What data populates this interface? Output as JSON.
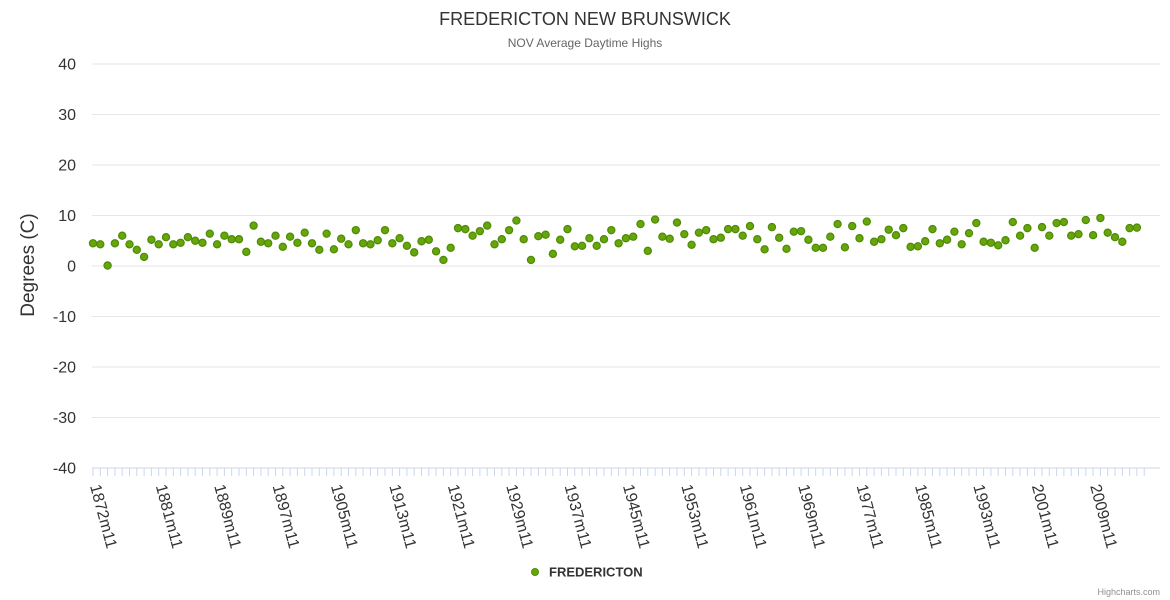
{
  "chart_data": {
    "type": "scatter",
    "title": "FREDERICTON NEW BRUNSWICK",
    "subtitle": "NOV Average Daytime Highs",
    "ylabel": "Degrees (C)",
    "xlabel": "",
    "ylim": [
      -40,
      40
    ],
    "yticks": [
      40,
      30,
      20,
      10,
      0,
      -10,
      -20,
      -30,
      -40
    ],
    "xlim": [
      1872,
      2016
    ],
    "xticks": [
      {
        "year": 1872,
        "label": "1872m11"
      },
      {
        "year": 1881,
        "label": "1881m11"
      },
      {
        "year": 1889,
        "label": "1889m11"
      },
      {
        "year": 1897,
        "label": "1897m11"
      },
      {
        "year": 1905,
        "label": "1905m11"
      },
      {
        "year": 1913,
        "label": "1913m11"
      },
      {
        "year": 1921,
        "label": "1921m11"
      },
      {
        "year": 1929,
        "label": "1929m11"
      },
      {
        "year": 1937,
        "label": "1937m11"
      },
      {
        "year": 1945,
        "label": "1945m11"
      },
      {
        "year": 1953,
        "label": "1953m11"
      },
      {
        "year": 1961,
        "label": "1961m11"
      },
      {
        "year": 1969,
        "label": "1969m11"
      },
      {
        "year": 1977,
        "label": "1977m11"
      },
      {
        "year": 1985,
        "label": "1985m11"
      },
      {
        "year": 1993,
        "label": "1993m11"
      },
      {
        "year": 2001,
        "label": "2001m11"
      },
      {
        "year": 2009,
        "label": "2009m11"
      }
    ],
    "grid": true,
    "legend_position": "bottom-center",
    "series": [
      {
        "name": "FREDERICTON",
        "color": "#66a60a",
        "start_year": 1872,
        "values": [
          4.5,
          4.3,
          0.1,
          4.5,
          6.0,
          4.3,
          3.2,
          1.8,
          5.2,
          4.3,
          5.7,
          4.3,
          4.6,
          5.7,
          5.0,
          4.6,
          6.4,
          4.3,
          6.0,
          5.3,
          5.3,
          2.8,
          8.0,
          4.8,
          4.5,
          6.0,
          3.8,
          5.8,
          4.6,
          6.6,
          4.5,
          3.2,
          6.4,
          3.3,
          5.4,
          4.3,
          7.1,
          4.5,
          4.3,
          5.1,
          7.1,
          4.5,
          5.5,
          4.0,
          2.7,
          4.9,
          5.2,
          2.9,
          1.2,
          3.6,
          7.5,
          7.3,
          6.0,
          6.9,
          8.0,
          4.3,
          5.3,
          7.1,
          9.0,
          5.3,
          1.2,
          5.9,
          6.2,
          2.4,
          5.2,
          7.3,
          3.9,
          4.0,
          5.5,
          4.0,
          5.3,
          7.1,
          4.5,
          5.5,
          5.8,
          8.3,
          3.0,
          9.2,
          5.8,
          5.4,
          8.6,
          6.3,
          4.2,
          6.6,
          7.1,
          5.3,
          5.6,
          7.3,
          7.3,
          6.0,
          7.9,
          5.3,
          3.3,
          7.7,
          5.6,
          3.4,
          6.8,
          6.9,
          5.2,
          3.6,
          3.6,
          5.8,
          8.3,
          3.7,
          7.9,
          5.5,
          8.8,
          4.8,
          5.3,
          7.2,
          6.1,
          7.5,
          3.8,
          3.9,
          4.9,
          7.3,
          4.5,
          5.2,
          6.8,
          4.3,
          6.5,
          8.5,
          4.8,
          4.6,
          4.1,
          5.1,
          8.7,
          6.0,
          7.5,
          3.6,
          7.7,
          6.0,
          8.5,
          8.7,
          6.0,
          6.3,
          9.1,
          6.1,
          9.5,
          6.6,
          5.7,
          4.8,
          7.5,
          7.6
        ]
      }
    ]
  },
  "credits": "Highcharts.com"
}
